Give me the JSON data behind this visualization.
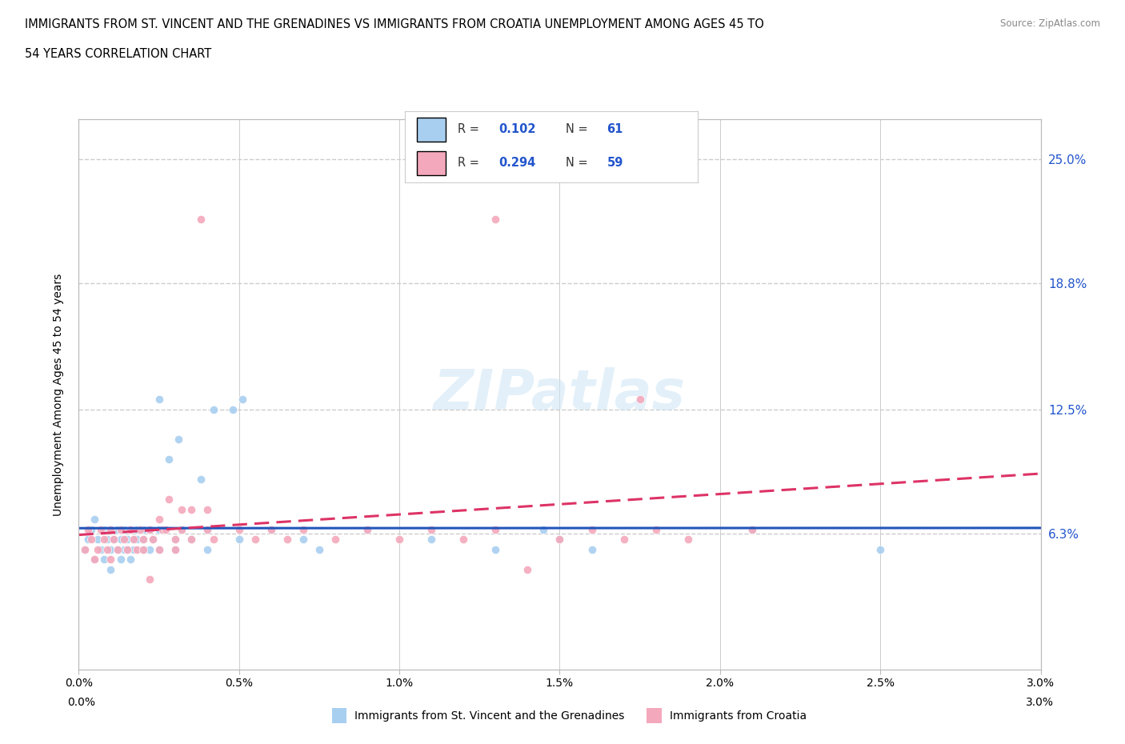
{
  "title_line1": "IMMIGRANTS FROM ST. VINCENT AND THE GRENADINES VS IMMIGRANTS FROM CROATIA UNEMPLOYMENT AMONG AGES 45 TO",
  "title_line2": "54 YEARS CORRELATION CHART",
  "source": "Source: ZipAtlas.com",
  "ylabel": "Unemployment Among Ages 45 to 54 years",
  "xlim": [
    0.0,
    0.03
  ],
  "ylim": [
    -0.005,
    0.27
  ],
  "yticks": [
    0.063,
    0.125,
    0.188,
    0.25
  ],
  "ytick_labels": [
    "6.3%",
    "12.5%",
    "18.8%",
    "25.0%"
  ],
  "xticks": [
    0.0,
    0.005,
    0.01,
    0.015,
    0.02,
    0.025,
    0.03
  ],
  "xtick_labels": [
    "0.0%",
    "0.5%",
    "1.0%",
    "1.5%",
    "2.0%",
    "2.5%",
    "3.0%"
  ],
  "grid_color": "#cccccc",
  "background_color": "#ffffff",
  "series1_color": "#a8cff0",
  "series2_color": "#f4a8bb",
  "series1_label": "Immigrants from St. Vincent and the Grenadines",
  "series2_label": "Immigrants from Croatia",
  "series1_R": 0.102,
  "series1_N": 61,
  "series2_R": 0.294,
  "series2_N": 59,
  "trend1_color": "#2255bb",
  "trend2_color": "#dd3366",
  "legend_R_color": "#2255cc",
  "series1_x": [
    0.0002,
    0.0003,
    0.0004,
    0.0005,
    0.0005,
    0.0006,
    0.0007,
    0.0008,
    0.0008,
    0.0009,
    0.001,
    0.001,
    0.001,
    0.0011,
    0.0012,
    0.0012,
    0.0013,
    0.0013,
    0.0014,
    0.0014,
    0.0015,
    0.0015,
    0.0016,
    0.0016,
    0.0017,
    0.0017,
    0.0018,
    0.0018,
    0.002,
    0.002,
    0.002,
    0.0022,
    0.0022,
    0.0023,
    0.0025,
    0.0025,
    0.003,
    0.003,
    0.0032,
    0.0035,
    0.004,
    0.004,
    0.005,
    0.006,
    0.007,
    0.0075,
    0.009,
    0.011,
    0.013,
    0.0145,
    0.015,
    0.016,
    0.021,
    0.025,
    0.0025,
    0.0028,
    0.0031,
    0.0038,
    0.0042,
    0.0051,
    0.0048
  ],
  "series1_y": [
    0.055,
    0.06,
    0.065,
    0.05,
    0.07,
    0.06,
    0.055,
    0.065,
    0.05,
    0.06,
    0.055,
    0.065,
    0.045,
    0.06,
    0.055,
    0.065,
    0.05,
    0.06,
    0.055,
    0.065,
    0.06,
    0.055,
    0.065,
    0.05,
    0.06,
    0.055,
    0.065,
    0.06,
    0.055,
    0.065,
    0.06,
    0.055,
    0.065,
    0.06,
    0.055,
    0.065,
    0.06,
    0.055,
    0.065,
    0.06,
    0.055,
    0.065,
    0.06,
    0.065,
    0.06,
    0.055,
    0.065,
    0.06,
    0.055,
    0.065,
    0.06,
    0.055,
    0.065,
    0.055,
    0.13,
    0.1,
    0.11,
    0.09,
    0.125,
    0.13,
    0.125
  ],
  "series2_x": [
    0.0002,
    0.0003,
    0.0004,
    0.0005,
    0.0006,
    0.0007,
    0.0008,
    0.0009,
    0.001,
    0.001,
    0.0011,
    0.0012,
    0.0013,
    0.0014,
    0.0015,
    0.0016,
    0.0017,
    0.0018,
    0.0019,
    0.002,
    0.002,
    0.0022,
    0.0023,
    0.0025,
    0.0026,
    0.003,
    0.003,
    0.0032,
    0.0035,
    0.004,
    0.0042,
    0.005,
    0.0055,
    0.006,
    0.0065,
    0.007,
    0.008,
    0.009,
    0.01,
    0.011,
    0.012,
    0.013,
    0.014,
    0.015,
    0.016,
    0.017,
    0.018,
    0.019,
    0.021,
    0.0035,
    0.0028,
    0.0032,
    0.0022,
    0.0025,
    0.0027,
    0.004,
    0.0038,
    0.0175,
    0.013
  ],
  "series2_y": [
    0.055,
    0.065,
    0.06,
    0.05,
    0.055,
    0.065,
    0.06,
    0.055,
    0.065,
    0.05,
    0.06,
    0.055,
    0.065,
    0.06,
    0.055,
    0.065,
    0.06,
    0.055,
    0.065,
    0.06,
    0.055,
    0.065,
    0.06,
    0.055,
    0.065,
    0.06,
    0.055,
    0.065,
    0.06,
    0.065,
    0.06,
    0.065,
    0.06,
    0.065,
    0.06,
    0.065,
    0.06,
    0.065,
    0.06,
    0.065,
    0.06,
    0.065,
    0.045,
    0.06,
    0.065,
    0.06,
    0.065,
    0.06,
    0.065,
    0.075,
    0.08,
    0.075,
    0.04,
    0.07,
    0.065,
    0.075,
    0.22,
    0.13,
    0.22
  ]
}
